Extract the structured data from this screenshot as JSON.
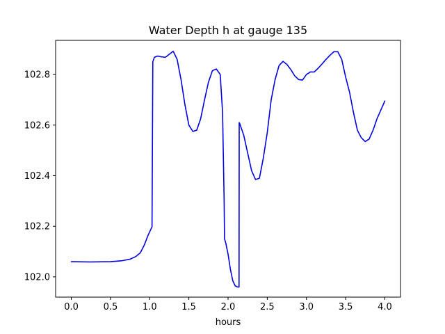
{
  "chart_data": {
    "type": "line",
    "title": "Water Depth h at gauge 135",
    "xlabel": "hours",
    "ylabel": "",
    "xlim": [
      -0.2,
      4.2
    ],
    "ylim": [
      101.92,
      102.935
    ],
    "xticks": [
      0.0,
      0.5,
      1.0,
      1.5,
      2.0,
      2.5,
      3.0,
      3.5,
      4.0
    ],
    "xtick_labels": [
      "0.0",
      "0.5",
      "1.0",
      "1.5",
      "2.0",
      "2.5",
      "3.0",
      "3.5",
      "4.0"
    ],
    "yticks": [
      102.0,
      102.2,
      102.4,
      102.6,
      102.8
    ],
    "ytick_labels": [
      "102.0",
      "102.2",
      "102.4",
      "102.6",
      "102.8"
    ],
    "grid": false,
    "series": [
      {
        "color": "#0000e0",
        "x": [
          0.0,
          0.25,
          0.5,
          0.65,
          0.75,
          0.82,
          0.88,
          0.93,
          0.98,
          1.03,
          1.04,
          1.06,
          1.1,
          1.15,
          1.2,
          1.25,
          1.3,
          1.35,
          1.4,
          1.45,
          1.5,
          1.55,
          1.6,
          1.65,
          1.7,
          1.75,
          1.8,
          1.85,
          1.9,
          1.93,
          1.95,
          1.955,
          1.97,
          2.0,
          2.03,
          2.06,
          2.09,
          2.12,
          2.14,
          2.142,
          2.15,
          2.2,
          2.25,
          2.3,
          2.35,
          2.4,
          2.45,
          2.5,
          2.55,
          2.6,
          2.65,
          2.7,
          2.75,
          2.8,
          2.85,
          2.9,
          2.95,
          3.0,
          3.05,
          3.1,
          3.15,
          3.2,
          3.25,
          3.3,
          3.35,
          3.4,
          3.45,
          3.5,
          3.55,
          3.6,
          3.65,
          3.7,
          3.75,
          3.8,
          3.85,
          3.9,
          3.95,
          4.0
        ],
        "y": [
          102.06,
          102.059,
          102.06,
          102.064,
          102.07,
          102.08,
          102.095,
          102.125,
          102.165,
          102.198,
          102.85,
          102.868,
          102.873,
          102.87,
          102.868,
          102.88,
          102.892,
          102.86,
          102.78,
          102.68,
          102.6,
          102.575,
          102.58,
          102.625,
          102.7,
          102.77,
          102.815,
          102.822,
          102.8,
          102.65,
          102.3,
          102.15,
          102.135,
          102.09,
          102.03,
          101.985,
          101.965,
          101.96,
          101.96,
          102.61,
          102.605,
          102.56,
          102.49,
          102.42,
          102.385,
          102.39,
          102.47,
          102.57,
          102.7,
          102.78,
          102.835,
          102.852,
          102.84,
          102.82,
          102.795,
          102.78,
          102.778,
          102.8,
          102.81,
          102.81,
          102.825,
          102.842,
          102.86,
          102.876,
          102.89,
          102.89,
          102.86,
          102.79,
          102.73,
          102.65,
          102.58,
          102.55,
          102.535,
          102.545,
          102.58,
          102.625,
          102.66,
          102.695
        ]
      }
    ]
  }
}
